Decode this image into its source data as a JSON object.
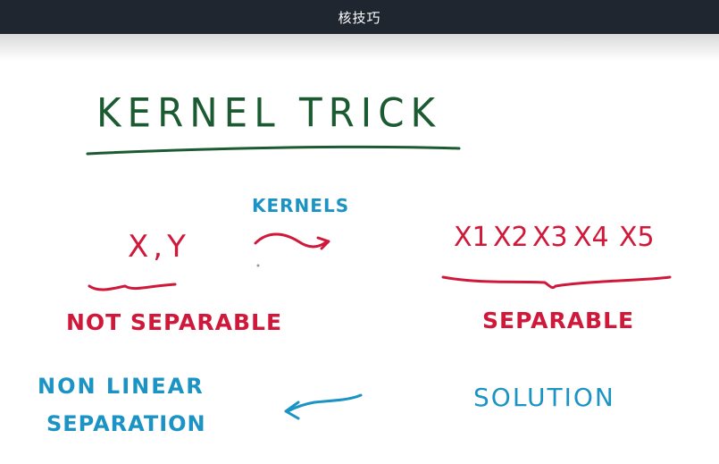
{
  "window": {
    "title": "核技巧"
  },
  "colors": {
    "green": "#1c5b32",
    "blue": "#1b93c4",
    "red": "#d0183a",
    "topbar": "#1f2630"
  },
  "board": {
    "heading": "KERNEL TRICK",
    "kernels_label": "KERNELS",
    "input_features": "X,Y",
    "output_features": [
      "X1",
      "X2",
      "X3",
      "X4",
      "X5"
    ],
    "not_separable": "NOT SEPARABLE",
    "separable": "SEPARABLE",
    "non_linear_line1": "NON LINEAR",
    "non_linear_line2": "SEPARATION",
    "solution": "SOLUTION"
  }
}
